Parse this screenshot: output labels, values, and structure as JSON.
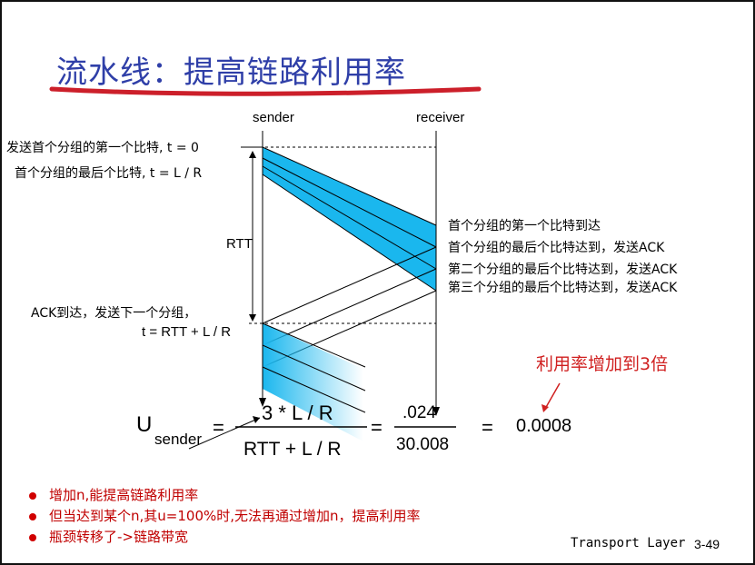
{
  "title": "流水线：提高链路利用率",
  "diagram": {
    "sender_label": "sender",
    "receiver_label": "receiver",
    "left_annotations": {
      "first_bit": "发送首个分组的第一个比特, t = 0",
      "last_bit": "首个分组的最后个比特, t = L / R",
      "rtt": "RTT",
      "ack_arrive": "ACK到达，发送下一个分组，",
      "ack_time": "t = RTT + L / R"
    },
    "right_annotations": [
      "首个分组的第一个比特到达",
      "首个分组的最后个比特达到，发送ACK",
      "第二个分组的最后个比特达到，发送ACK",
      "第三个分组的最后个比特达到，发送ACK"
    ],
    "packet_color": "#1ab7ee"
  },
  "formula": {
    "u": "U",
    "u_sub": "sender",
    "eq1": "=",
    "numerator": "3 * L / R",
    "denominator": "RTT + L / R",
    "eq2": "=",
    "num2": ".024",
    "den2": "30.008",
    "eq3": "=",
    "result": "0.0008",
    "callout": "利用率增加到3倍"
  },
  "bullets": [
    "增加n,能提高链路利用率",
    "但当达到某个n,其u=100%时,无法再通过增加n，提高利用率",
    "瓶颈转移了->链路带宽"
  ],
  "footer": {
    "layer": "Transport Layer",
    "page": "3-49"
  }
}
